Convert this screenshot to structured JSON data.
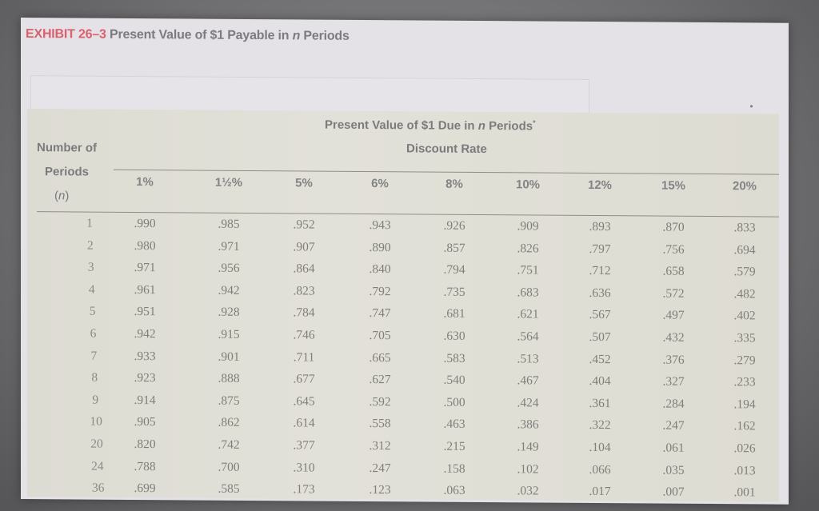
{
  "exhibit": {
    "number_label": "EXHIBIT 26–3",
    "title_prefix": "Present Value of $1 Payable in ",
    "title_n": "n",
    "title_suffix": " Periods"
  },
  "table": {
    "super_header_prefix": "Present Value of $1 Due in ",
    "super_header_n": "n",
    "super_header_suffix": " Periods",
    "super_header_mark": "*",
    "rate_header": "Discount Rate",
    "periods_header": {
      "line1": "Number of",
      "line2": "Periods",
      "line3_open": "(",
      "line3_n": "n",
      "line3_close": ")"
    },
    "columns": [
      "1%",
      "1½%",
      "5%",
      "6%",
      "8%",
      "10%",
      "12%",
      "15%",
      "20%"
    ],
    "rows": [
      {
        "n": "1",
        "values": [
          ".990",
          ".985",
          ".952",
          ".943",
          ".926",
          ".909",
          ".893",
          ".870",
          ".833"
        ]
      },
      {
        "n": "2",
        "values": [
          ".980",
          ".971",
          ".907",
          ".890",
          ".857",
          ".826",
          ".797",
          ".756",
          ".694"
        ]
      },
      {
        "n": "3",
        "values": [
          ".971",
          ".956",
          ".864",
          ".840",
          ".794",
          ".751",
          ".712",
          ".658",
          ".579"
        ]
      },
      {
        "n": "4",
        "values": [
          ".961",
          ".942",
          ".823",
          ".792",
          ".735",
          ".683",
          ".636",
          ".572",
          ".482"
        ]
      },
      {
        "n": "5",
        "values": [
          ".951",
          ".928",
          ".784",
          ".747",
          ".681",
          ".621",
          ".567",
          ".497",
          ".402"
        ]
      },
      {
        "n": "6",
        "values": [
          ".942",
          ".915",
          ".746",
          ".705",
          ".630",
          ".564",
          ".507",
          ".432",
          ".335"
        ]
      },
      {
        "n": "7",
        "values": [
          ".933",
          ".901",
          ".711",
          ".665",
          ".583",
          ".513",
          ".452",
          ".376",
          ".279"
        ]
      },
      {
        "n": "8",
        "values": [
          ".923",
          ".888",
          ".677",
          ".627",
          ".540",
          ".467",
          ".404",
          ".327",
          ".233"
        ]
      },
      {
        "n": "9",
        "values": [
          ".914",
          ".875",
          ".645",
          ".592",
          ".500",
          ".424",
          ".361",
          ".284",
          ".194"
        ]
      },
      {
        "n": "10",
        "values": [
          ".905",
          ".862",
          ".614",
          ".558",
          ".463",
          ".386",
          ".322",
          ".247",
          ".162"
        ]
      },
      {
        "n": "20",
        "values": [
          ".820",
          ".742",
          ".377",
          ".312",
          ".215",
          ".149",
          ".104",
          ".061",
          ".026"
        ]
      },
      {
        "n": "24",
        "values": [
          ".788",
          ".700",
          ".310",
          ".247",
          ".158",
          ".102",
          ".066",
          ".035",
          ".013"
        ]
      },
      {
        "n": "36",
        "values": [
          ".699",
          ".585",
          ".173",
          ".123",
          ".063",
          ".032",
          ".017",
          ".007",
          ".001"
        ]
      }
    ]
  },
  "colors": {
    "exhibit_number": "#d9606c",
    "header_text": "#7b7b7d",
    "panel_background": "#dcdbd2",
    "page_background": "#e4e2e6"
  }
}
